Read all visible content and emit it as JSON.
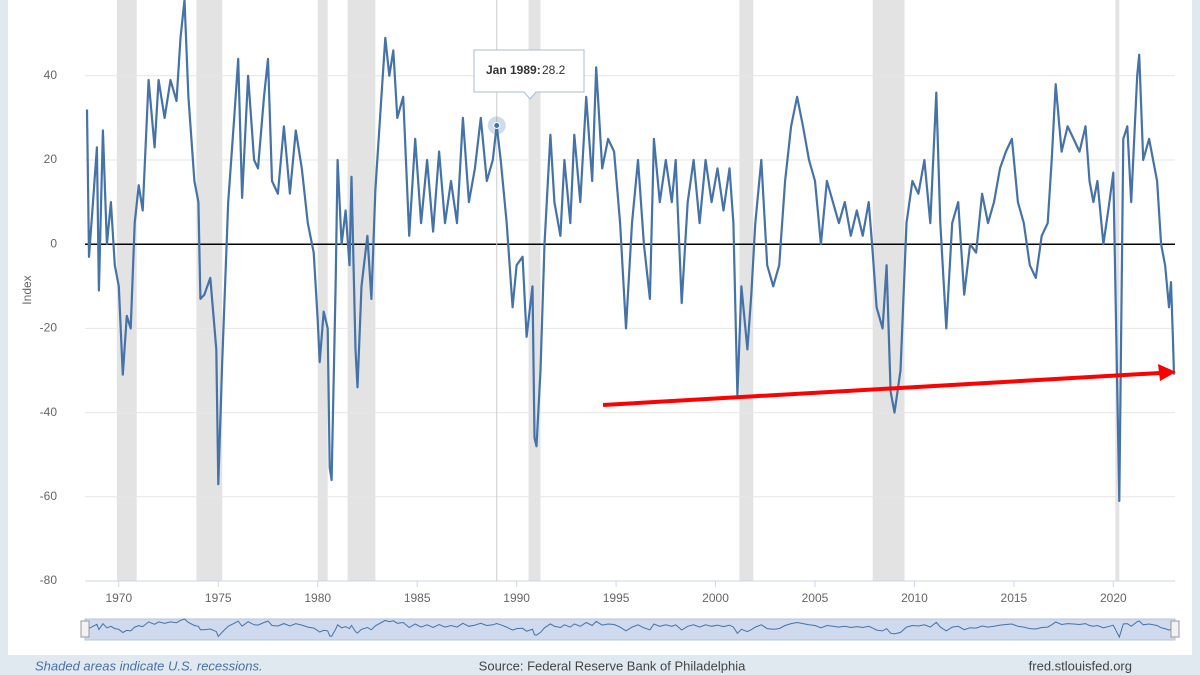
{
  "chart_data": {
    "type": "line",
    "y_label": "Index",
    "color": "#4572a7",
    "xlim": [
      1968.3,
      2023.1
    ],
    "xticks": [
      1970,
      1975,
      1980,
      1985,
      1990,
      1995,
      2000,
      2005,
      2010,
      2015,
      2020
    ],
    "ylim": [
      -80,
      58
    ],
    "yticks": [
      -80,
      -60,
      -40,
      -20,
      0,
      20,
      40
    ],
    "grid": true,
    "recessions": [
      [
        1969.9,
        1970.9
      ],
      [
        1973.9,
        1975.2
      ],
      [
        1980.0,
        1980.5
      ],
      [
        1981.5,
        1982.9
      ],
      [
        1990.6,
        1991.2
      ],
      [
        2001.2,
        2001.9
      ],
      [
        2007.9,
        2009.5
      ],
      [
        2020.1,
        2020.3
      ]
    ],
    "x": [
      1968.4,
      1968.5,
      1968.7,
      1968.9,
      1969.0,
      1969.2,
      1969.4,
      1969.6,
      1969.8,
      1970.0,
      1970.2,
      1970.4,
      1970.6,
      1970.8,
      1971.0,
      1971.2,
      1971.5,
      1971.8,
      1972.0,
      1972.3,
      1972.6,
      1972.9,
      1973.1,
      1973.3,
      1973.5,
      1973.8,
      1974.0,
      1974.1,
      1974.3,
      1974.6,
      1974.9,
      1975.0,
      1975.2,
      1975.5,
      1975.8,
      1976.0,
      1976.2,
      1976.5,
      1976.8,
      1977.0,
      1977.3,
      1977.5,
      1977.7,
      1978.0,
      1978.3,
      1978.6,
      1978.9,
      1979.2,
      1979.5,
      1979.8,
      1980.0,
      1980.1,
      1980.3,
      1980.5,
      1980.6,
      1980.7,
      1980.9,
      1981.0,
      1981.2,
      1981.4,
      1981.6,
      1981.7,
      1981.9,
      1982.0,
      1982.2,
      1982.5,
      1982.7,
      1982.9,
      1983.2,
      1983.4,
      1983.6,
      1983.8,
      1984.0,
      1984.3,
      1984.6,
      1984.9,
      1985.2,
      1985.5,
      1985.8,
      1986.1,
      1986.4,
      1986.7,
      1987.0,
      1987.3,
      1987.6,
      1987.9,
      1988.2,
      1988.5,
      1988.8,
      1989.0,
      1989.2,
      1989.5,
      1989.8,
      1990.0,
      1990.3,
      1990.5,
      1990.8,
      1990.9,
      1991.0,
      1991.2,
      1991.4,
      1991.7,
      1991.9,
      1992.2,
      1992.4,
      1992.7,
      1992.9,
      1993.2,
      1993.5,
      1993.8,
      1994.0,
      1994.3,
      1994.6,
      1994.9,
      1995.2,
      1995.5,
      1995.8,
      1996.1,
      1996.4,
      1996.7,
      1996.9,
      1997.2,
      1997.5,
      1997.8,
      1998.0,
      1998.3,
      1998.6,
      1998.9,
      1999.2,
      1999.5,
      1999.8,
      2000.1,
      2000.4,
      2000.7,
      2000.9,
      2001.1,
      2001.3,
      2001.6,
      2001.8,
      2002.0,
      2002.3,
      2002.6,
      2002.9,
      2003.2,
      2003.5,
      2003.8,
      2004.1,
      2004.4,
      2004.7,
      2005.0,
      2005.3,
      2005.6,
      2005.9,
      2006.2,
      2006.5,
      2006.8,
      2007.1,
      2007.4,
      2007.7,
      2007.9,
      2008.1,
      2008.4,
      2008.6,
      2008.8,
      2009.0,
      2009.3,
      2009.6,
      2009.9,
      2010.2,
      2010.5,
      2010.8,
      2011.1,
      2011.3,
      2011.6,
      2011.9,
      2012.2,
      2012.5,
      2012.8,
      2013.1,
      2013.4,
      2013.7,
      2014.0,
      2014.3,
      2014.6,
      2014.9,
      2015.2,
      2015.5,
      2015.8,
      2016.1,
      2016.4,
      2016.7,
      2016.9,
      2017.1,
      2017.4,
      2017.7,
      2018.0,
      2018.3,
      2018.6,
      2018.8,
      2019.0,
      2019.2,
      2019.5,
      2019.8,
      2020.0,
      2020.3,
      2020.5,
      2020.7,
      2020.9,
      2021.2,
      2021.3,
      2021.5,
      2021.8,
      2022.0,
      2022.2,
      2022.4,
      2022.6,
      2022.8,
      2022.9,
      2023.0,
      2023.05
    ],
    "values": [
      32,
      -3,
      10,
      23,
      -11,
      27,
      0,
      10,
      -5,
      -10,
      -31,
      -17,
      -20,
      5,
      14,
      8,
      39,
      23,
      39,
      30,
      39,
      34,
      49,
      58,
      35,
      15,
      10,
      -13,
      -12,
      -8,
      -25,
      -57,
      -28,
      10,
      30,
      44,
      11,
      40,
      20,
      18,
      35,
      44,
      15,
      12,
      28,
      12,
      27,
      18,
      5,
      -2,
      -18,
      -28,
      -16,
      -20,
      -53,
      -56,
      -10,
      20,
      0,
      8,
      -5,
      16,
      -25,
      -34,
      -10,
      2,
      -13,
      13,
      35,
      49,
      40,
      46,
      30,
      35,
      2,
      25,
      5,
      20,
      3,
      22,
      5,
      15,
      5,
      30,
      10,
      18,
      30,
      15,
      20,
      28.2,
      20,
      5,
      -15,
      -5,
      -3,
      -22,
      -10,
      -46,
      -48,
      -30,
      0,
      26,
      10,
      2,
      20,
      5,
      26,
      10,
      35,
      15,
      42,
      18,
      25,
      22,
      5,
      -20,
      5,
      20,
      0,
      -13,
      25,
      10,
      20,
      10,
      20,
      -14,
      10,
      20,
      5,
      20,
      10,
      18,
      8,
      18,
      5,
      -36,
      -10,
      -25,
      -12,
      5,
      20,
      -5,
      -10,
      -5,
      15,
      28,
      35,
      28,
      20,
      15,
      0,
      15,
      10,
      5,
      10,
      2,
      8,
      2,
      10,
      -2,
      -15,
      -20,
      -5,
      -35,
      -40,
      -30,
      5,
      15,
      12,
      20,
      5,
      36,
      5,
      -20,
      5,
      10,
      -12,
      0,
      -2,
      12,
      5,
      10,
      18,
      22,
      25,
      10,
      5,
      -5,
      -8,
      2,
      5,
      20,
      38,
      22,
      28,
      25,
      22,
      28,
      15,
      10,
      15,
      0,
      10,
      17,
      -61,
      25,
      28,
      10,
      40,
      45,
      20,
      25,
      20,
      15,
      0,
      -5,
      -15,
      -9,
      -23,
      -31
    ],
    "tooltip": {
      "x": 1989.0,
      "label": "Jan 1989:",
      "value": 28.2
    },
    "footer": {
      "note": "Shaded areas indicate U.S. recessions.",
      "source": "Source: Federal Reserve Bank of Philadelphia",
      "site": "fred.stlouisfed.org"
    }
  }
}
